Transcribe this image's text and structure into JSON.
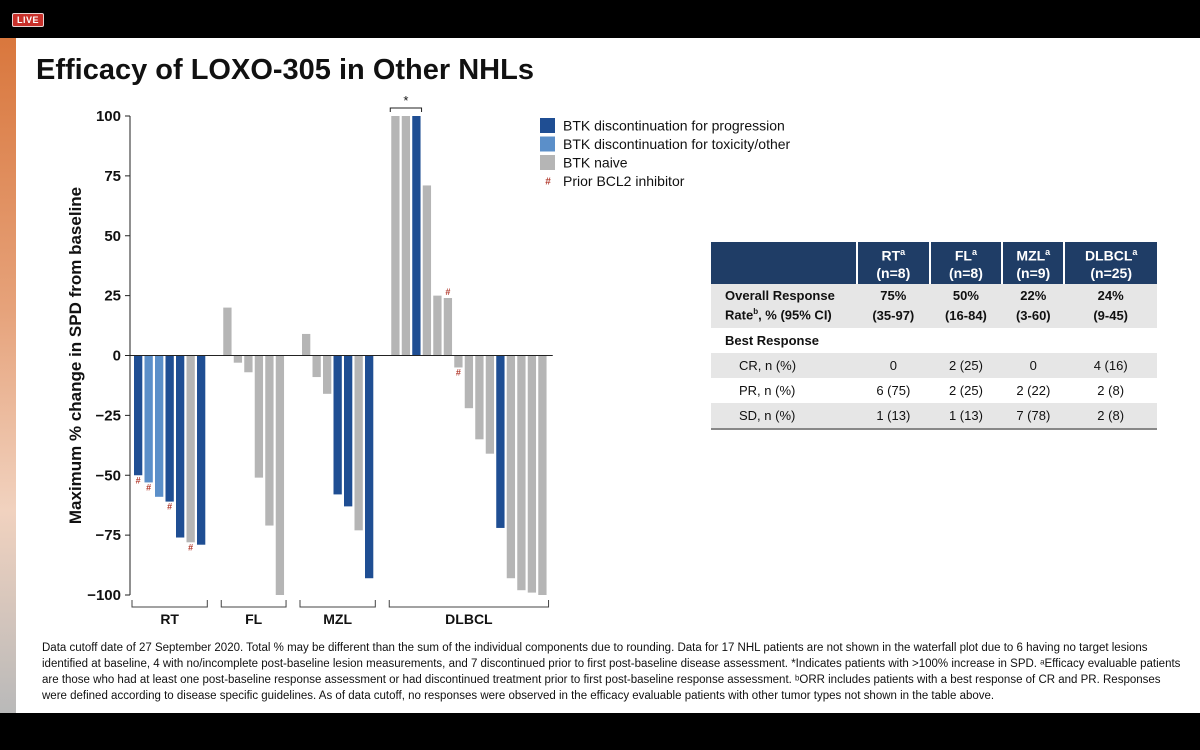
{
  "live_badge": "LIVE",
  "slide_title": "Efficacy of LOXO-305 in Other NHLs",
  "colors": {
    "progression": "#1f4e93",
    "toxicity": "#5b8fc9",
    "naive": "#b5b5b5",
    "hash": "#b23b2e",
    "table_header": "#1f3d66"
  },
  "chart_data": {
    "type": "bar",
    "ylabel": "Maximum % change in SPD from baseline",
    "ylim": [
      -100,
      100
    ],
    "yticks": [
      100,
      75,
      50,
      25,
      0,
      -25,
      -50,
      -75,
      -100
    ],
    "ytick_labels": [
      "100",
      "75",
      "50",
      "25",
      "0",
      "−25",
      "−50",
      "−75",
      "−100"
    ],
    "legend": [
      {
        "label": "BTK discontinuation for progression",
        "kind": "progression"
      },
      {
        "label": "BTK discontinuation for toxicity/other",
        "kind": "toxicity"
      },
      {
        "label": "BTK naive",
        "kind": "naive"
      },
      {
        "label": "Prior BCL2 inhibitor",
        "kind": "hash"
      }
    ],
    "hash_symbol": "#",
    "star_symbol": "*",
    "groups": [
      {
        "name": "RT",
        "bars": [
          {
            "value": -50,
            "kind": "progression",
            "hash": true
          },
          {
            "value": -53,
            "kind": "toxicity",
            "hash": true
          },
          {
            "value": -59,
            "kind": "toxicity",
            "hash": false
          },
          {
            "value": -61,
            "kind": "progression",
            "hash": true
          },
          {
            "value": -76,
            "kind": "progression",
            "hash": false
          },
          {
            "value": -78,
            "kind": "naive",
            "hash": true
          },
          {
            "value": -79,
            "kind": "progression",
            "hash": false
          }
        ]
      },
      {
        "name": "FL",
        "bars": [
          {
            "value": 20,
            "kind": "naive",
            "hash": false
          },
          {
            "value": -3,
            "kind": "naive",
            "hash": false
          },
          {
            "value": -7,
            "kind": "naive",
            "hash": false
          },
          {
            "value": -51,
            "kind": "naive",
            "hash": false
          },
          {
            "value": -71,
            "kind": "naive",
            "hash": false
          },
          {
            "value": -100,
            "kind": "naive",
            "hash": false
          }
        ]
      },
      {
        "name": "MZL",
        "bars": [
          {
            "value": 9,
            "kind": "naive",
            "hash": false
          },
          {
            "value": -9,
            "kind": "naive",
            "hash": false
          },
          {
            "value": -16,
            "kind": "naive",
            "hash": false
          },
          {
            "value": -58,
            "kind": "progression",
            "hash": false
          },
          {
            "value": -63,
            "kind": "progression",
            "hash": false
          },
          {
            "value": -73,
            "kind": "naive",
            "hash": false
          },
          {
            "value": -93,
            "kind": "progression",
            "hash": false
          }
        ]
      },
      {
        "name": "DLBCL",
        "bars": [
          {
            "value": 100,
            "kind": "naive",
            "hash": false,
            "star": true
          },
          {
            "value": 100,
            "kind": "naive",
            "hash": false,
            "star": true
          },
          {
            "value": 100,
            "kind": "progression",
            "hash": false,
            "star": true
          },
          {
            "value": 71,
            "kind": "naive",
            "hash": false
          },
          {
            "value": 25,
            "kind": "naive",
            "hash": false
          },
          {
            "value": 24,
            "kind": "naive",
            "hash": true
          },
          {
            "value": -5,
            "kind": "naive",
            "hash": true
          },
          {
            "value": -22,
            "kind": "naive",
            "hash": false
          },
          {
            "value": -35,
            "kind": "naive",
            "hash": false
          },
          {
            "value": -41,
            "kind": "naive",
            "hash": false
          },
          {
            "value": -72,
            "kind": "progression",
            "hash": false
          },
          {
            "value": -93,
            "kind": "naive",
            "hash": false
          },
          {
            "value": -98,
            "kind": "naive",
            "hash": false
          },
          {
            "value": -99,
            "kind": "naive",
            "hash": false
          },
          {
            "value": -100,
            "kind": "naive",
            "hash": false
          }
        ]
      }
    ]
  },
  "table": {
    "header_row1": [
      "",
      "RT",
      "FL",
      "MZL",
      "DLBCL"
    ],
    "header_row2": [
      "",
      "(n=8)",
      "(n=8)",
      "(n=9)",
      "(n=25)"
    ],
    "header_sup": "a",
    "orr_label_line1": "Overall Response",
    "orr_label_line2_pre": "Rate",
    "orr_label_sup": "b",
    "orr_label_line2_post": ", % (95% CI)",
    "orr_values": [
      "75%",
      "50%",
      "22%",
      "24%"
    ],
    "orr_ci": [
      "(35-97)",
      "(16-84)",
      "(3-60)",
      "(9-45)"
    ],
    "best_response_label": "Best Response",
    "rows": [
      {
        "label": "CR, n (%)",
        "values": [
          "0",
          "2 (25)",
          "0",
          "4 (16)"
        ]
      },
      {
        "label": "PR, n (%)",
        "values": [
          "6 (75)",
          "2 (25)",
          "2 (22)",
          "2 (8)"
        ]
      },
      {
        "label": "SD, n (%)",
        "values": [
          "1 (13)",
          "1 (13)",
          "7 (78)",
          "2 (8)"
        ]
      }
    ]
  },
  "footnote": "Data cutoff date of 27 September 2020. Total % may be different than the sum of the individual components due to rounding. Data for 17 NHL patients are not shown in the waterfall plot due to 6 having no target lesions identified at baseline, 4 with no/incomplete post-baseline lesion measurements, and 7 discontinued prior to first post-baseline disease assessment. *Indicates patients with >100% increase in SPD. ᵃEfficacy evaluable patients are those who had at least one post-baseline response assessment or had discontinued treatment prior to first post-baseline response assessment. ᵇORR includes patients with a best response of CR and PR. Responses were defined according to disease specific guidelines. As of data cutoff, no responses were observed in the efficacy evaluable patients with other tumor types not shown in the table above."
}
